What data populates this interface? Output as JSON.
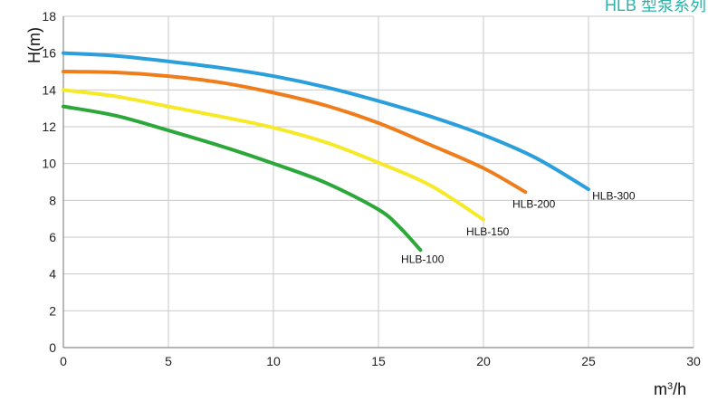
{
  "chart_data": {
    "type": "line",
    "title": "HLB 型泵系列",
    "title_color": "#2bb3a8",
    "xlabel_base": "m",
    "xlabel_sup": "3",
    "xlabel_tail": "/h",
    "ylabel": "H(m)",
    "xlim": [
      0,
      30
    ],
    "ylim": [
      0,
      18
    ],
    "x_ticks": [
      0,
      5,
      10,
      15,
      20,
      25,
      30
    ],
    "y_ticks": [
      0,
      2,
      4,
      6,
      8,
      10,
      12,
      14,
      16,
      18
    ],
    "grid": true,
    "series": [
      {
        "name": "HLB-100",
        "color": "#2ca83a",
        "points": [
          [
            0,
            13.1
          ],
          [
            2.5,
            12.6
          ],
          [
            5,
            11.8
          ],
          [
            7.5,
            10.95
          ],
          [
            10,
            10.0
          ],
          [
            12.5,
            8.95
          ],
          [
            15,
            7.5
          ],
          [
            16,
            6.55
          ],
          [
            17,
            5.3
          ]
        ]
      },
      {
        "name": "HLB-150",
        "color": "#f5e928",
        "points": [
          [
            0,
            14.0
          ],
          [
            2.5,
            13.65
          ],
          [
            5,
            13.1
          ],
          [
            7.5,
            12.55
          ],
          [
            10,
            11.95
          ],
          [
            12.5,
            11.15
          ],
          [
            15,
            10.05
          ],
          [
            17.5,
            8.8
          ],
          [
            20,
            6.95
          ]
        ]
      },
      {
        "name": "HLB-200",
        "color": "#f07d1b",
        "points": [
          [
            0,
            15.0
          ],
          [
            2.5,
            14.95
          ],
          [
            5,
            14.75
          ],
          [
            7.5,
            14.4
          ],
          [
            10,
            13.85
          ],
          [
            12.5,
            13.15
          ],
          [
            15,
            12.2
          ],
          [
            17.5,
            11.0
          ],
          [
            20,
            9.75
          ],
          [
            22,
            8.45
          ]
        ]
      },
      {
        "name": "HLB-300",
        "color": "#2b9fdb",
        "points": [
          [
            0,
            16.0
          ],
          [
            2.5,
            15.85
          ],
          [
            5,
            15.55
          ],
          [
            7.5,
            15.2
          ],
          [
            10,
            14.75
          ],
          [
            12.5,
            14.15
          ],
          [
            15,
            13.4
          ],
          [
            17.5,
            12.55
          ],
          [
            20,
            11.55
          ],
          [
            22.5,
            10.3
          ],
          [
            25,
            8.6
          ]
        ]
      }
    ],
    "series_labels": [
      {
        "name": "HLB-100",
        "text": "HLB-100",
        "x": 17.1,
        "y": 4.6
      },
      {
        "name": "HLB-150",
        "text": "HLB-150",
        "x": 20.2,
        "y": 6.1
      },
      {
        "name": "HLB-200",
        "text": "HLB-200",
        "x": 22.4,
        "y": 7.6
      },
      {
        "name": "HLB-300",
        "text": "HLB-300",
        "x": 26.2,
        "y": 8.05
      }
    ]
  }
}
